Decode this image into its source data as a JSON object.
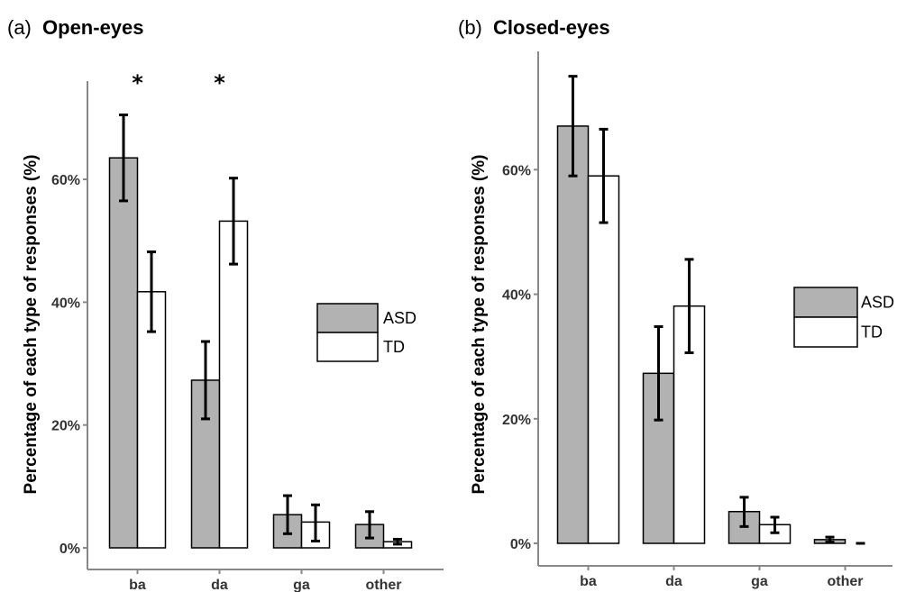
{
  "chart_data": [
    {
      "type": "bar",
      "panel_label": "(a)",
      "title": "Open-eyes",
      "ylabel": "Percentage of each type of responses (%)",
      "xlabel": "",
      "categories": [
        "ba",
        "da",
        "ga",
        "other"
      ],
      "ylim": [
        0,
        76
      ],
      "yticks": [
        0,
        20,
        40,
        60
      ],
      "ytick_labels": [
        "0%",
        "20%",
        "40%",
        "60%"
      ],
      "grid": false,
      "legend_position": "right",
      "series": [
        {
          "name": "ASD",
          "color": "#b2b2b2",
          "values": [
            63.5,
            27.3,
            5.4,
            3.8
          ],
          "err_low": [
            56.5,
            21.0,
            2.3,
            1.6
          ],
          "err_high": [
            70.5,
            33.6,
            8.5,
            5.9
          ]
        },
        {
          "name": "TD",
          "color": "#ffffff",
          "values": [
            41.7,
            53.2,
            4.2,
            1.0
          ],
          "err_low": [
            35.2,
            46.2,
            1.1,
            0.6
          ],
          "err_high": [
            48.2,
            60.2,
            7.0,
            1.4
          ]
        }
      ],
      "significance": [
        {
          "category": "ba",
          "label": "*"
        },
        {
          "category": "da",
          "label": "*"
        }
      ]
    },
    {
      "type": "bar",
      "panel_label": "(b)",
      "title": "Closed-eyes",
      "ylabel": "Percentage of each type of responses (%)",
      "xlabel": "",
      "categories": [
        "ba",
        "da",
        "ga",
        "other"
      ],
      "ylim": [
        0,
        79
      ],
      "yticks": [
        0,
        20,
        40,
        60
      ],
      "ytick_labels": [
        "0%",
        "20%",
        "40%",
        "60%"
      ],
      "grid": false,
      "legend_position": "right",
      "series": [
        {
          "name": "ASD",
          "color": "#b2b2b2",
          "values": [
            67.0,
            27.3,
            5.1,
            0.6
          ],
          "err_low": [
            59.0,
            19.8,
            2.7,
            0.2
          ],
          "err_high": [
            75.0,
            34.8,
            7.4,
            1.0
          ]
        },
        {
          "name": "TD",
          "color": "#ffffff",
          "values": [
            59.0,
            38.1,
            3.0,
            0.0
          ],
          "err_low": [
            51.5,
            30.6,
            1.7,
            0.0
          ],
          "err_high": [
            66.5,
            45.6,
            4.2,
            0.0
          ]
        }
      ],
      "significance": []
    }
  ]
}
